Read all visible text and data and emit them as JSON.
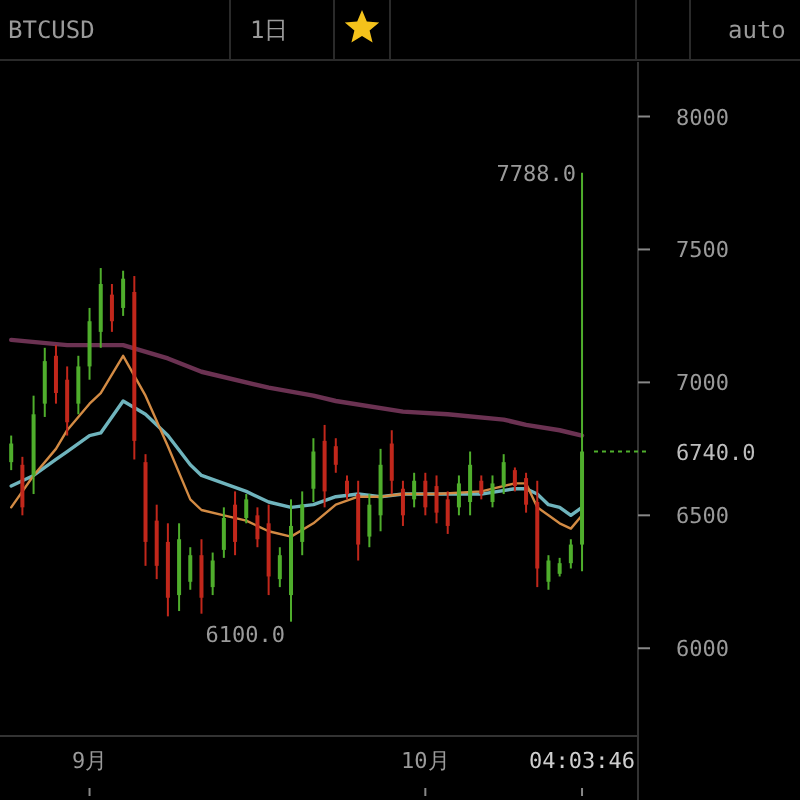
{
  "chart_data": {
    "type": "candlestick",
    "title": "BTCUSD",
    "annotations": [
      "1日",
      "auto",
      {
        "text": "7788.0",
        "x": "--10-15",
        "y": 7788
      },
      {
        "text": "6100.0",
        "x": "--09-19",
        "y": 6100
      }
    ],
    "x": [
      "--08-25",
      "--08-26",
      "--08-27",
      "--08-28",
      "--08-29",
      "--08-30",
      "--08-31",
      "--09-01",
      "--09-02",
      "--09-03",
      "--09-04",
      "--09-05",
      "--09-06",
      "--09-07",
      "--09-08",
      "--09-09",
      "--09-10",
      "--09-11",
      "--09-12",
      "--09-13",
      "--09-14",
      "--09-15",
      "--09-16",
      "--09-17",
      "--09-18",
      "--09-19",
      "--09-20",
      "--09-21",
      "--09-22",
      "--09-23",
      "--09-24",
      "--09-25",
      "--09-26",
      "--09-27",
      "--09-28",
      "--09-29",
      "--09-30",
      "--10-01",
      "--10-02",
      "--10-03",
      "--10-04",
      "--10-05",
      "--10-06",
      "--10-07",
      "--10-08",
      "--10-09",
      "--10-10",
      "--10-11",
      "--10-12",
      "--10-13",
      "--10-14",
      "--10-15"
    ],
    "ohlc": [
      [
        6700,
        6800,
        6670,
        6770
      ],
      [
        6690,
        6720,
        6500,
        6530
      ],
      [
        6650,
        6950,
        6580,
        6880
      ],
      [
        6920,
        7130,
        6870,
        7080
      ],
      [
        7100,
        7140,
        6920,
        6960
      ],
      [
        7010,
        7060,
        6800,
        6850
      ],
      [
        6920,
        7100,
        6880,
        7060
      ],
      [
        7060,
        7280,
        7010,
        7230
      ],
      [
        7190,
        7430,
        7130,
        7370
      ],
      [
        7330,
        7370,
        7190,
        7230
      ],
      [
        7280,
        7420,
        7250,
        7390
      ],
      [
        7340,
        7400,
        6710,
        6780
      ],
      [
        6700,
        6730,
        6310,
        6400
      ],
      [
        6480,
        6540,
        6260,
        6310
      ],
      [
        6400,
        6470,
        6120,
        6190
      ],
      [
        6200,
        6470,
        6140,
        6410
      ],
      [
        6250,
        6380,
        6220,
        6350
      ],
      [
        6350,
        6410,
        6130,
        6190
      ],
      [
        6230,
        6360,
        6200,
        6330
      ],
      [
        6370,
        6530,
        6340,
        6490
      ],
      [
        6540,
        6590,
        6350,
        6400
      ],
      [
        6490,
        6580,
        6470,
        6560
      ],
      [
        6500,
        6530,
        6380,
        6410
      ],
      [
        6470,
        6540,
        6200,
        6270
      ],
      [
        6260,
        6380,
        6230,
        6350
      ],
      [
        6200,
        6560,
        6100,
        6460
      ],
      [
        6400,
        6590,
        6350,
        6540
      ],
      [
        6600,
        6790,
        6550,
        6740
      ],
      [
        6780,
        6840,
        6530,
        6590
      ],
      [
        6760,
        6790,
        6660,
        6690
      ],
      [
        6630,
        6650,
        6560,
        6580
      ],
      [
        6580,
        6630,
        6330,
        6390
      ],
      [
        6420,
        6580,
        6380,
        6540
      ],
      [
        6500,
        6750,
        6440,
        6690
      ],
      [
        6770,
        6820,
        6580,
        6630
      ],
      [
        6600,
        6630,
        6460,
        6500
      ],
      [
        6560,
        6660,
        6530,
        6630
      ],
      [
        6630,
        6660,
        6500,
        6530
      ],
      [
        6610,
        6650,
        6470,
        6510
      ],
      [
        6560,
        6590,
        6430,
        6460
      ],
      [
        6530,
        6650,
        6500,
        6620
      ],
      [
        6550,
        6740,
        6500,
        6690
      ],
      [
        6630,
        6650,
        6560,
        6580
      ],
      [
        6550,
        6650,
        6530,
        6620
      ],
      [
        6610,
        6730,
        6580,
        6700
      ],
      [
        6670,
        6680,
        6590,
        6610
      ],
      [
        6640,
        6660,
        6510,
        6540
      ],
      [
        6550,
        6630,
        6230,
        6300
      ],
      [
        6250,
        6350,
        6220,
        6330
      ],
      [
        6280,
        6340,
        6270,
        6320
      ],
      [
        6320,
        6410,
        6300,
        6390
      ],
      [
        6390,
        7788,
        6290,
        6740
      ]
    ],
    "series": [
      {
        "type": "line",
        "color": "#6b3252",
        "x": [
          "--08-25",
          "--08-30",
          "--09-04",
          "--09-08",
          "--09-11",
          "--09-17",
          "--09-21",
          "--09-23",
          "--09-29",
          "--10-03",
          "--10-08",
          "--10-10",
          "--10-13",
          "--10-15"
        ],
        "values": [
          7160,
          7140,
          7140,
          7090,
          7040,
          6980,
          6950,
          6930,
          6890,
          6880,
          6860,
          6840,
          6820,
          6800
        ]
      },
      {
        "type": "line",
        "color": "#6fb4bd",
        "x": [
          "--08-25",
          "--08-27",
          "--08-29",
          "--08-30",
          "--09-01",
          "--09-02",
          "--09-04",
          "--09-06",
          "--09-08",
          "--09-10",
          "--09-11",
          "--09-13",
          "--09-15",
          "--09-17",
          "--09-19",
          "--09-21",
          "--09-23",
          "--09-25",
          "--09-27",
          "--09-29",
          "--10-02",
          "--10-06",
          "--10-09",
          "--10-10",
          "--10-11",
          "--10-12",
          "--10-13",
          "--10-14",
          "--10-15"
        ],
        "values": [
          6610,
          6650,
          6710,
          6740,
          6800,
          6810,
          6930,
          6880,
          6800,
          6690,
          6650,
          6620,
          6590,
          6550,
          6530,
          6540,
          6570,
          6580,
          6570,
          6580,
          6580,
          6580,
          6600,
          6600,
          6580,
          6540,
          6530,
          6500,
          6530
        ]
      },
      {
        "type": "line",
        "color": "#d38b44",
        "x": [
          "--08-25",
          "--08-27",
          "--08-29",
          "--08-30",
          "--09-01",
          "--09-02",
          "--09-04",
          "--09-06",
          "--09-08",
          "--09-10",
          "--09-11",
          "--09-13",
          "--09-15",
          "--09-17",
          "--09-19",
          "--09-21",
          "--09-23",
          "--09-25",
          "--09-27",
          "--09-29",
          "--10-02",
          "--10-06",
          "--10-09",
          "--10-10",
          "--10-11",
          "--10-12",
          "--10-13",
          "--10-14",
          "--10-15"
        ],
        "values": [
          6530,
          6650,
          6750,
          6820,
          6920,
          6960,
          7100,
          6950,
          6760,
          6560,
          6520,
          6500,
          6480,
          6440,
          6420,
          6470,
          6540,
          6570,
          6570,
          6580,
          6580,
          6590,
          6620,
          6620,
          6530,
          6500,
          6470,
          6450,
          6500
        ]
      }
    ],
    "xlim": [
      "--08-24",
      "--10-20"
    ],
    "xticks": [
      {
        "value": "--09-01",
        "label": "9月"
      },
      {
        "value": "--10-01",
        "label": "10月"
      },
      {
        "value": "--10-15",
        "label": "04:03:46"
      }
    ],
    "ylim": [
      5670,
      8205
    ],
    "yticks": [
      6000,
      6500,
      7000,
      7500,
      8000
    ],
    "ref_lines": [
      {
        "axis": "y",
        "value": 6740,
        "label": "6740.0",
        "color": "#4fae2c",
        "line_style": "dotted"
      }
    ],
    "grid": false
  }
}
